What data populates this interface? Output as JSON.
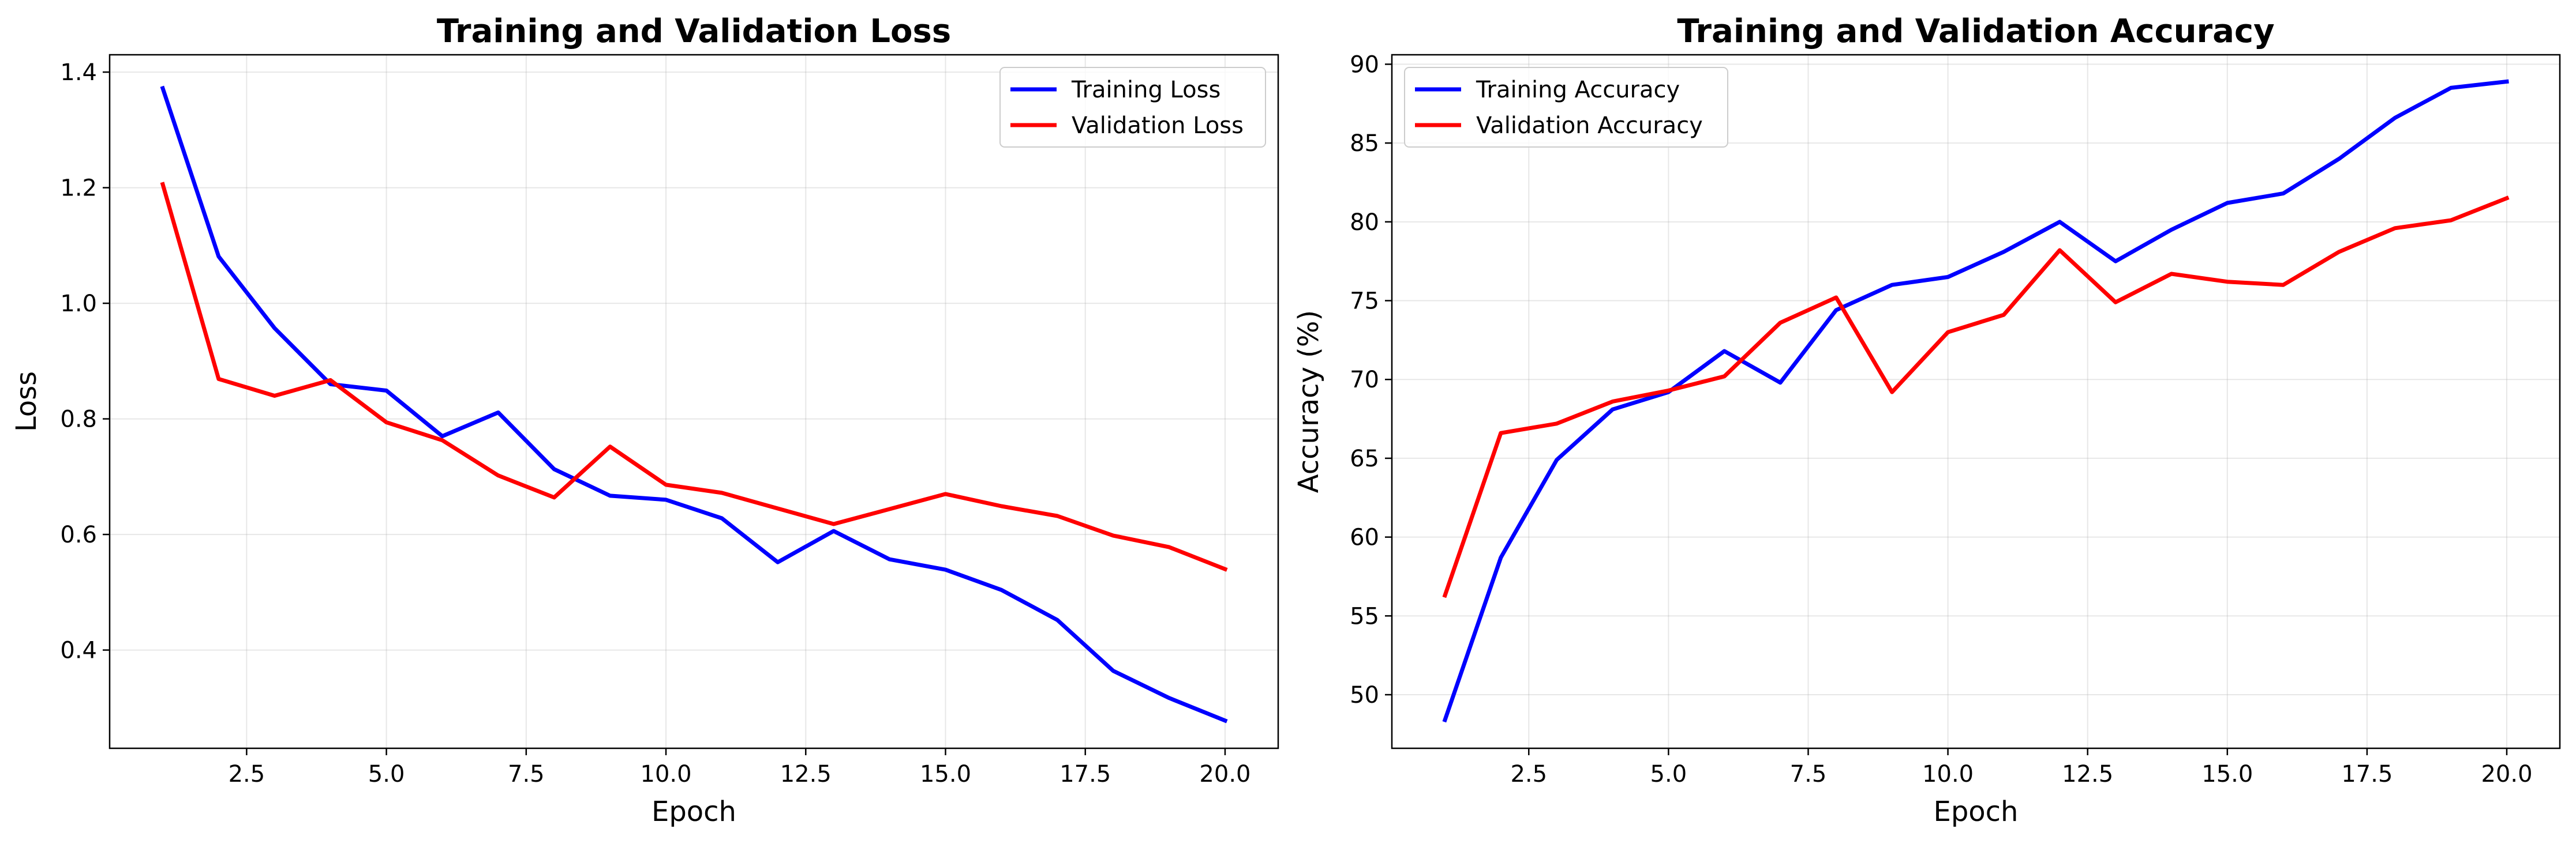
{
  "chart_data": [
    {
      "type": "line",
      "title": "Training and Validation Loss",
      "xlabel": "Epoch",
      "ylabel": "Loss",
      "xlim": [
        0.05,
        20.95
      ],
      "ylim": [
        0.23,
        1.43
      ],
      "xticks": [
        2.5,
        5.0,
        7.5,
        10.0,
        12.5,
        15.0,
        17.5,
        20.0
      ],
      "xtick_labels": [
        "2.5",
        "5.0",
        "7.5",
        "10.0",
        "12.5",
        "15.0",
        "17.5",
        "20.0"
      ],
      "yticks": [
        0.4,
        0.6,
        0.8,
        1.0,
        1.2,
        1.4
      ],
      "ytick_labels": [
        "0.4",
        "0.6",
        "0.8",
        "1.0",
        "1.2",
        "1.4"
      ],
      "grid": true,
      "legend_position": "top-right",
      "x": [
        1,
        2,
        3,
        4,
        5,
        6,
        7,
        8,
        9,
        10,
        11,
        12,
        13,
        14,
        15,
        16,
        17,
        18,
        19,
        20
      ],
      "series": [
        {
          "name": "Training Loss",
          "color": "#0000ff",
          "values": [
            1.372,
            1.081,
            0.957,
            0.86,
            0.849,
            0.77,
            0.811,
            0.713,
            0.667,
            0.66,
            0.628,
            0.552,
            0.606,
            0.557,
            0.539,
            0.504,
            0.452,
            0.364,
            0.317,
            0.278
          ]
        },
        {
          "name": "Validation Loss",
          "color": "#ff0000",
          "values": [
            1.206,
            0.869,
            0.84,
            0.867,
            0.794,
            0.763,
            0.702,
            0.664,
            0.752,
            0.686,
            0.672,
            0.645,
            0.618,
            0.644,
            0.67,
            0.649,
            0.632,
            0.598,
            0.578,
            0.54
          ]
        }
      ]
    },
    {
      "type": "line",
      "title": "Training and Validation Accuracy",
      "xlabel": "Epoch",
      "ylabel": "Accuracy (%)",
      "xlim": [
        0.05,
        20.95
      ],
      "ylim": [
        46.6,
        90.6
      ],
      "xticks": [
        2.5,
        5.0,
        7.5,
        10.0,
        12.5,
        15.0,
        17.5,
        20.0
      ],
      "xtick_labels": [
        "2.5",
        "5.0",
        "7.5",
        "10.0",
        "12.5",
        "15.0",
        "17.5",
        "20.0"
      ],
      "yticks": [
        50,
        55,
        60,
        65,
        70,
        75,
        80,
        85,
        90
      ],
      "ytick_labels": [
        "50",
        "55",
        "60",
        "65",
        "70",
        "75",
        "80",
        "85",
        "90"
      ],
      "grid": true,
      "legend_position": "top-left",
      "x": [
        1,
        2,
        3,
        4,
        5,
        6,
        7,
        8,
        9,
        10,
        11,
        12,
        13,
        14,
        15,
        16,
        17,
        18,
        19,
        20
      ],
      "series": [
        {
          "name": "Training Accuracy",
          "color": "#0000ff",
          "values": [
            48.4,
            58.7,
            64.9,
            68.1,
            69.2,
            71.8,
            69.8,
            74.4,
            76.0,
            76.5,
            78.1,
            80.0,
            77.5,
            79.5,
            81.2,
            81.8,
            84.0,
            86.6,
            88.5,
            88.9
          ]
        },
        {
          "name": "Validation Accuracy",
          "color": "#ff0000",
          "values": [
            56.3,
            66.6,
            67.2,
            68.6,
            69.3,
            70.2,
            73.6,
            75.2,
            69.2,
            73.0,
            74.1,
            78.2,
            74.9,
            76.7,
            76.2,
            76.0,
            78.1,
            79.6,
            80.1,
            81.5
          ]
        }
      ]
    }
  ]
}
